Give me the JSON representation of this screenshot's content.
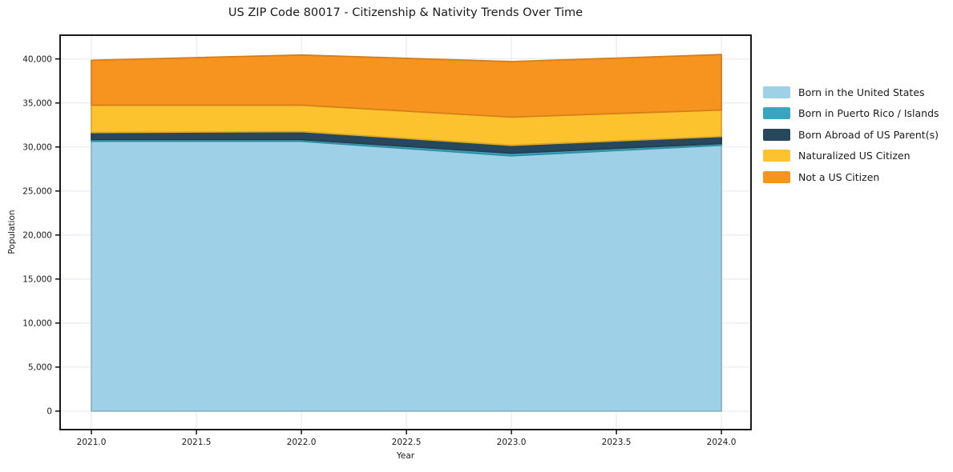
{
  "title": "US ZIP Code 80017 - Citizenship & Nativity Trends Over Time",
  "chart_data": {
    "type": "area",
    "stacked": true,
    "title": "US ZIP Code 80017 - Citizenship & Nativity Trends Over Time",
    "xlabel": "Year",
    "ylabel": "Population",
    "x": [
      2021,
      2022,
      2023,
      2024
    ],
    "series": [
      {
        "name": "Born in the United States",
        "color": "#9ed1e8",
        "values": [
          30650,
          30650,
          29000,
          30200
        ]
      },
      {
        "name": "Born in Puerto Rico / Islands",
        "color": "#39a6c0",
        "values": [
          200,
          200,
          300,
          200
        ]
      },
      {
        "name": "Born Abroad of US Parent(s)",
        "color": "#27485c",
        "values": [
          800,
          900,
          900,
          800
        ]
      },
      {
        "name": "Naturalized US Citizen",
        "color": "#fdc32f",
        "values": [
          3100,
          3000,
          3200,
          3000
        ]
      },
      {
        "name": "Not a US Citizen",
        "color": "#f7941f",
        "values": [
          5100,
          5700,
          6300,
          6300
        ]
      }
    ],
    "x_tick_values": [
      2021,
      2021.5,
      2022,
      2022.5,
      2023,
      2023.5,
      2024
    ],
    "x_tick_labels": [
      "2021.0",
      "2021.5",
      "2022.0",
      "2022.5",
      "2023.0",
      "2023.5",
      "2024.0"
    ],
    "y_tick_values": [
      0,
      5000,
      10000,
      15000,
      20000,
      25000,
      30000,
      35000,
      40000
    ],
    "y_tick_labels": [
      "0",
      "5,000",
      "10,000",
      "15,000",
      "20,000",
      "25,000",
      "30,000",
      "35,000",
      "40,000"
    ],
    "ylim": [
      -2100,
      42700
    ],
    "xlim": [
      2020.851,
      2024.141
    ],
    "grid": true,
    "grid_color": "#e8e8f0",
    "legend_position": "right"
  }
}
